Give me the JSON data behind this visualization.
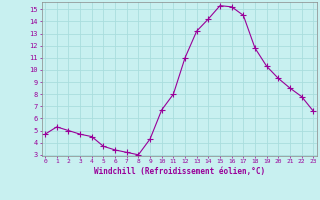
{
  "x": [
    0,
    1,
    2,
    3,
    4,
    5,
    6,
    7,
    8,
    9,
    10,
    11,
    12,
    13,
    14,
    15,
    16,
    17,
    18,
    19,
    20,
    21,
    22,
    23
  ],
  "y": [
    4.7,
    5.3,
    5.0,
    4.7,
    4.5,
    3.7,
    3.4,
    3.2,
    3.0,
    4.3,
    6.7,
    8.0,
    11.0,
    13.2,
    14.2,
    15.3,
    15.2,
    14.5,
    11.8,
    10.3,
    9.3,
    8.5,
    7.8,
    6.6
  ],
  "line_color": "#990099",
  "marker": "+",
  "marker_size": 4,
  "bg_color": "#c8f0f0",
  "grid_color": "#aadddd",
  "xlabel": "Windchill (Refroidissement éolien,°C)",
  "xlabel_color": "#990099",
  "tick_color": "#990099",
  "ylim": [
    3,
    15.5
  ],
  "xlim": [
    0,
    23
  ],
  "yticks": [
    3,
    4,
    5,
    6,
    7,
    8,
    9,
    10,
    11,
    12,
    13,
    14,
    15
  ],
  "xticks": [
    0,
    1,
    2,
    3,
    4,
    5,
    6,
    7,
    8,
    9,
    10,
    11,
    12,
    13,
    14,
    15,
    16,
    17,
    18,
    19,
    20,
    21,
    22,
    23
  ]
}
